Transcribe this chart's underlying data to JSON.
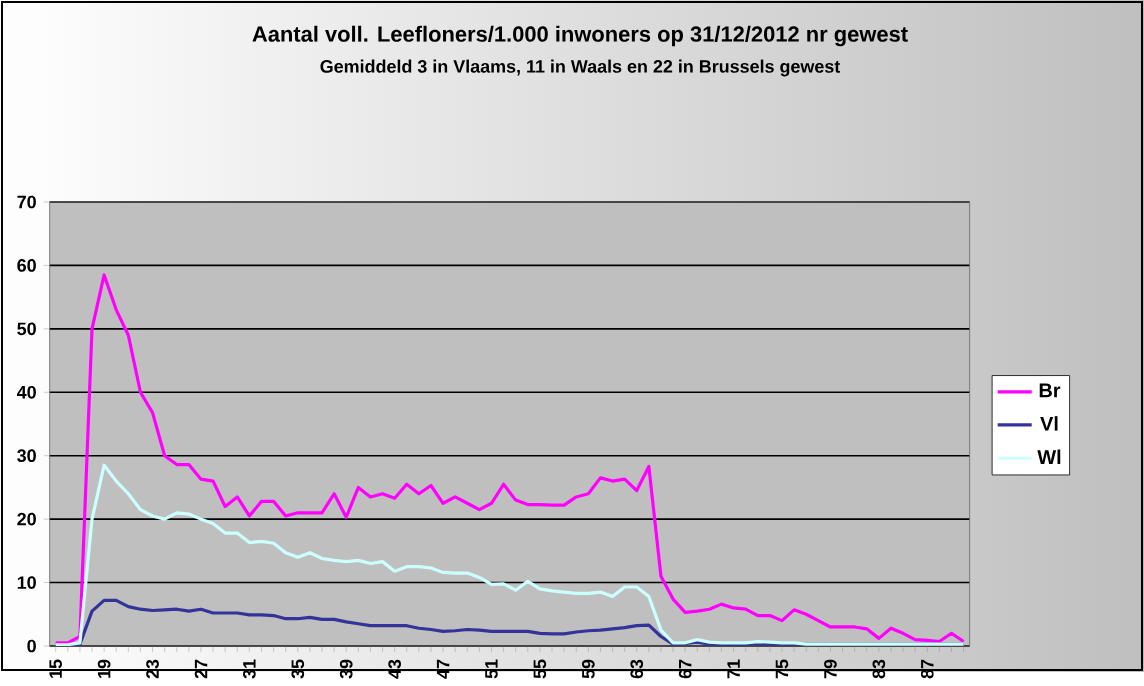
{
  "chart_data": {
    "type": "line",
    "title": "Aantal voll. Leefloners/1.000 inwoners op 31/12/2012 nr gewest",
    "subtitle": "Gemiddeld 3 in Vlaams, 11 in Waals en 22 in Brussels gewest",
    "categories": [
      "15",
      null,
      null,
      null,
      "19",
      null,
      null,
      null,
      "23",
      null,
      null,
      null,
      "27",
      null,
      null,
      null,
      "31",
      null,
      null,
      null,
      "35",
      null,
      null,
      null,
      "39",
      null,
      null,
      null,
      "43",
      null,
      null,
      null,
      "47",
      null,
      null,
      null,
      "51",
      null,
      null,
      null,
      "55",
      null,
      null,
      null,
      "59",
      null,
      null,
      null,
      "63",
      null,
      null,
      null,
      "67",
      null,
      null,
      null,
      "71",
      null,
      null,
      null,
      "75",
      null,
      null,
      null,
      "79",
      null,
      null,
      null,
      "83",
      null,
      null,
      null,
      "87",
      null,
      null,
      null
    ],
    "series": [
      {
        "name": "Br",
        "color": "#ff00ff",
        "values": [
          0.5,
          0.5,
          1.5,
          50,
          58.5,
          53,
          49,
          40,
          36.8,
          30,
          28.6,
          28.6,
          26.3,
          26,
          22,
          23.5,
          20.5,
          22.8,
          22.8,
          20.5,
          21,
          21,
          21,
          24,
          20.3,
          25,
          23.5,
          24,
          23.3,
          25.5,
          24,
          25.3,
          22.5,
          23.5,
          22.5,
          21.5,
          22.5,
          25.5,
          23,
          22.3,
          22.3,
          22.2,
          22.2,
          23.5,
          24,
          26.5,
          26,
          26.3,
          24.5,
          28.3,
          11,
          7.4,
          5.3,
          5.5,
          5.8,
          6.6,
          6,
          5.8,
          4.8,
          4.8,
          4,
          5.7,
          5,
          4,
          3,
          3,
          3,
          2.7,
          1.2,
          2.8,
          2,
          1,
          0.9,
          0.7,
          2,
          0.7
        ]
      },
      {
        "name": "Vl",
        "color": "#333399",
        "values": [
          0,
          0,
          0.3,
          5.5,
          7.2,
          7.2,
          6.2,
          5.8,
          5.6,
          5.7,
          5.8,
          5.5,
          5.8,
          5.2,
          5.2,
          5.2,
          4.9,
          4.9,
          4.8,
          4.3,
          4.3,
          4.5,
          4.2,
          4.2,
          3.8,
          3.5,
          3.2,
          3.2,
          3.2,
          3.2,
          2.8,
          2.6,
          2.3,
          2.4,
          2.6,
          2.5,
          2.3,
          2.3,
          2.3,
          2.3,
          2,
          1.9,
          1.9,
          2.2,
          2.4,
          2.5,
          2.7,
          2.9,
          3.2,
          3.3,
          1.5,
          0.3,
          0.4,
          0.6,
          0.3,
          0.3,
          0.3,
          0.3,
          0.4,
          0.3,
          0.3,
          0.3,
          0.3,
          0.3,
          0.3,
          0.3,
          0.3,
          0.3,
          null,
          null,
          null,
          null,
          0.3,
          0.3,
          0.3,
          0.3
        ]
      },
      {
        "name": "Wl",
        "color": "#ccffff",
        "values": [
          0.2,
          0.2,
          0.5,
          20,
          28.5,
          26,
          24,
          21.5,
          20.5,
          20,
          21,
          20.8,
          20,
          19.3,
          17.8,
          17.8,
          16.3,
          16.5,
          16.2,
          14.7,
          14,
          14.7,
          13.8,
          13.5,
          13.3,
          13.5,
          13,
          13.3,
          11.8,
          12.5,
          12.5,
          12.3,
          11.6,
          11.5,
          11.5,
          10.8,
          9.7,
          9.8,
          8.8,
          10.2,
          9,
          8.7,
          8.5,
          8.3,
          8.3,
          8.5,
          7.8,
          9.3,
          9.3,
          7.8,
          2.5,
          0.5,
          0.5,
          1,
          0.6,
          0.5,
          0.5,
          0.5,
          0.7,
          0.6,
          0.5,
          0.5,
          0.3,
          0.3,
          0.3,
          0.3,
          0.3,
          0.3,
          0.3,
          0.3,
          0.3,
          0.3,
          0.3,
          0.3,
          0.3,
          0.3
        ]
      }
    ],
    "ylim": [
      0,
      70
    ],
    "yticks": [
      0,
      10,
      20,
      30,
      40,
      50,
      60,
      70
    ],
    "grid": "y",
    "legend": "right",
    "marker": "none",
    "line_style": "solid"
  }
}
